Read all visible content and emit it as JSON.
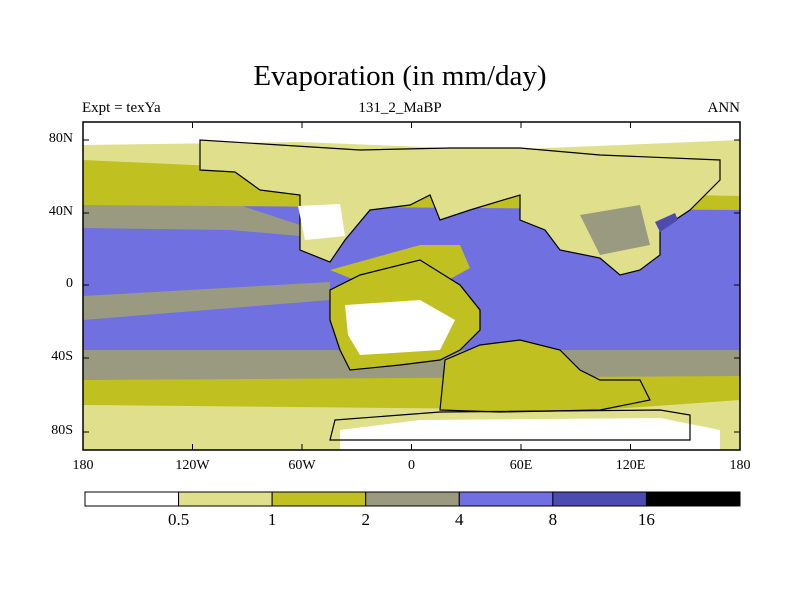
{
  "title": "Evaporation (in mm/day)",
  "subtitle_left": "Expt = texYa",
  "subtitle_center": "131_2_MaBP",
  "subtitle_right": "ANN",
  "y_ticks": [
    "80N",
    "40N",
    "0",
    "40S",
    "80S"
  ],
  "x_ticks": [
    "180",
    "120W",
    "60W",
    "0",
    "60E",
    "120E",
    "180"
  ],
  "colorbar": {
    "labels": [
      "0.5",
      "1",
      "2",
      "4",
      "8",
      "16"
    ],
    "colors": [
      "#ffffff",
      "#e0e08c",
      "#c0c020",
      "#9a9a80",
      "#7070e0",
      "#4c4cb0",
      "#000000"
    ]
  },
  "chart_data": {
    "type": "heatmap",
    "title": "Evaporation (in mm/day)",
    "variable": "Evaporation",
    "units": "mm/day",
    "lon_range": [
      -180,
      180
    ],
    "lat_range": [
      -90,
      90
    ],
    "levels": [
      0.5,
      1,
      2,
      4,
      8,
      16
    ]
  }
}
